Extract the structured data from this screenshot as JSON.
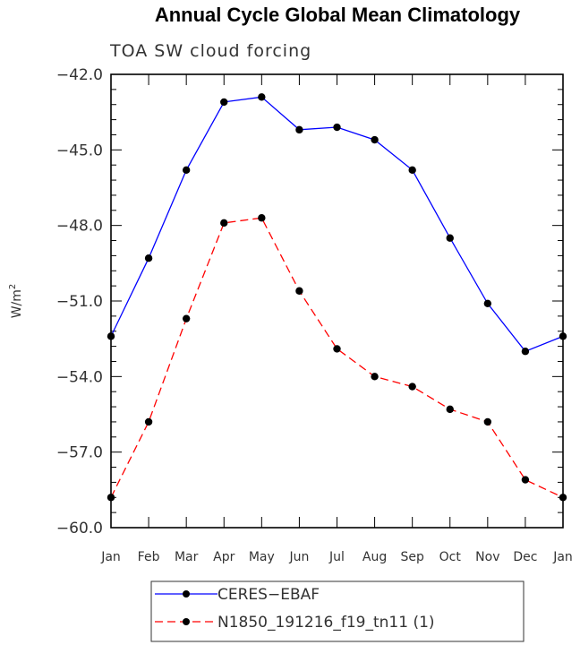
{
  "chart_data": {
    "type": "line",
    "title": "Annual Cycle Global Mean Climatology",
    "subtitle": "TOA SW cloud forcing",
    "xlabel": "",
    "ylabel": "W/m",
    "ylabel_sup": "2",
    "categories": [
      "Jan",
      "Feb",
      "Mar",
      "Apr",
      "May",
      "Jun",
      "Jul",
      "Aug",
      "Sep",
      "Oct",
      "Nov",
      "Dec",
      "Jan"
    ],
    "ylim": [
      -60.0,
      -42.0
    ],
    "yticks": [
      -42.0,
      -45.0,
      -48.0,
      -51.0,
      -54.0,
      -57.0,
      -60.0
    ],
    "ytick_labels": [
      "−42.0",
      "−45.0",
      "−48.0",
      "−51.0",
      "−54.0",
      "−57.0",
      "−60.0"
    ],
    "series": [
      {
        "name": "CERES−EBAF",
        "color": "#0000ff",
        "dash": "solid",
        "values": [
          -52.4,
          -49.3,
          -45.8,
          -43.1,
          -42.9,
          -44.2,
          -44.1,
          -44.6,
          -45.8,
          -48.5,
          -51.1,
          -53.0,
          -52.4
        ]
      },
      {
        "name": "N1850_191216_f19_tn11 (1)",
        "color": "#ff0000",
        "dash": "dashed",
        "values": [
          -58.8,
          -55.8,
          -51.7,
          -47.9,
          -47.7,
          -50.6,
          -52.9,
          -54.0,
          -54.4,
          -55.3,
          -55.8,
          -58.1,
          -58.8
        ]
      }
    ]
  }
}
